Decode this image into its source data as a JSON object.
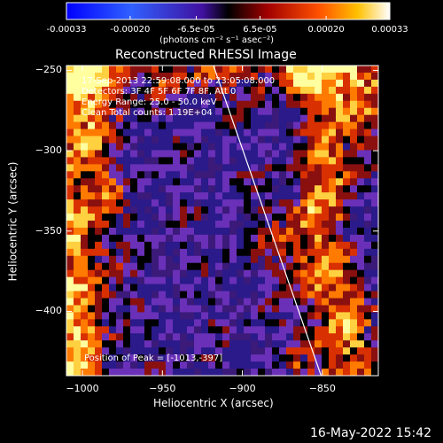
{
  "colorbar": {
    "ticks": [
      "-0.00033",
      "-0.00020",
      "-6.5e-05",
      "6.5e-05",
      "0.00020",
      "0.00033"
    ],
    "tick_values": [
      -0.00033,
      -0.0002,
      -6.5e-05,
      6.5e-05,
      0.0002,
      0.00033
    ],
    "range": [
      -0.00033,
      0.00033
    ],
    "unit_label": "(photons cm⁻² s⁻¹ asec⁻²)"
  },
  "chart_data": {
    "type": "heatmap",
    "title": "Reconstructed RHESSI Image",
    "xlabel": "Heliocentric X (arcsec)",
    "ylabel": "Heliocentric Y (arcsec)",
    "xlim": [
      -1010,
      -815
    ],
    "ylim": [
      -440,
      -247
    ],
    "x_ticks": [
      -1000,
      -950,
      -900,
      -850
    ],
    "y_ticks": [
      -250,
      -300,
      -350,
      -400
    ],
    "x_tick_labels": [
      "−1000",
      "−950",
      "−900",
      "−850"
    ],
    "y_tick_labels": [
      "−250",
      "−300",
      "−350",
      "−400"
    ],
    "limb_line": {
      "x": [
        -920,
        -850
      ],
      "y": [
        -247,
        -440
      ]
    },
    "peak": {
      "x": -1013,
      "y": -397
    },
    "colors": [
      "#000000",
      "#2a1a8a",
      "#6a30b8",
      "#3b1a7a",
      "#8a1010",
      "#d83000",
      "#ff7a00",
      "#ffd040",
      "#ffffa0"
    ]
  },
  "info": {
    "lines": [
      "17-Sep-2013 22:59:08.000 to 23:05:08.000",
      "Detectors: 3F 4F 5F 6F 7F 8F, Att 0",
      "Energy Range: 25.0 - 50.0 keV",
      "Clean     Total counts: 1.19E+04"
    ],
    "peak_label": "Position of Peak = [-1013,-397]"
  },
  "footer": {
    "timestamp": "16-May-2022 15:42"
  }
}
